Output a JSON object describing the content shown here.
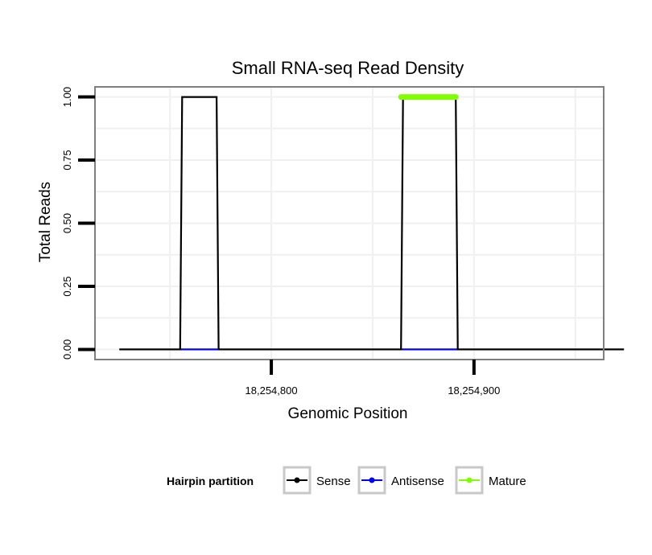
{
  "chart_data": {
    "type": "line",
    "title": "Small RNA-seq Read Density",
    "xlabel": "Genomic Position",
    "ylabel": "Total Reads",
    "xlim": [
      18254713,
      18254964
    ],
    "ylim": [
      -0.04,
      1.04
    ],
    "x_ticks": [
      18254800,
      18254900
    ],
    "x_tick_labels": [
      "18,254,800",
      "18,254,900"
    ],
    "y_ticks": [
      0,
      0.25,
      0.5,
      0.75,
      1
    ],
    "y_tick_labels": [
      "0.00",
      "0.25",
      "0.50",
      "0.75",
      "1.00"
    ],
    "grid": true,
    "legend": {
      "title": "Hairpin partition",
      "position": "bottom",
      "entries": [
        "Sense",
        "Antisense",
        "Mature"
      ]
    },
    "series": [
      {
        "name": "Sense",
        "color": "#000000",
        "x": [
          18254725,
          18254755,
          18254756,
          18254773,
          18254774,
          18254864,
          18254865,
          18254891,
          18254892,
          18254974
        ],
        "y": [
          0,
          0,
          1,
          1,
          0,
          0,
          1,
          1,
          0,
          0
        ]
      },
      {
        "name": "Antisense",
        "color": "#0000ff",
        "x": [
          18254755,
          18254774,
          null,
          18254864,
          18254892
        ],
        "y": [
          0,
          0,
          null,
          0,
          0
        ]
      },
      {
        "name": "Mature",
        "color": "#7fff00",
        "x": [
          18254864,
          18254891
        ],
        "y": [
          1,
          1
        ]
      }
    ]
  }
}
